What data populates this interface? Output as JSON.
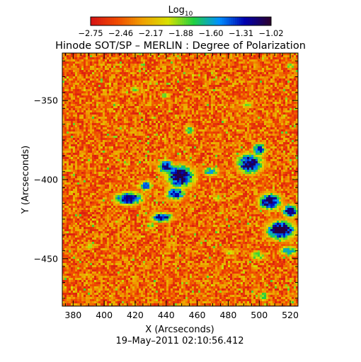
{
  "chart_data": {
    "type": "heatmap",
    "title": "Hinode SOT/SP – MERLIN : Degree of Polarization",
    "colorbar": {
      "title": "Log",
      "title_subscript": "10",
      "ticks": [
        "−2.75",
        "−2.46",
        "−2.17",
        "−1.88",
        "−1.60",
        "−1.31",
        "−1.02"
      ],
      "range": [
        -2.75,
        -1.02
      ],
      "colors": [
        "#d71414",
        "#f04a00",
        "#f0a000",
        "#d8e000",
        "#20d040",
        "#0090ff",
        "#0000b0",
        "#2a0030"
      ]
    },
    "xlabel": "X (Arcseconds)",
    "ylabel": "Y (Arcseconds)",
    "xlim": [
      373,
      525
    ],
    "ylim": [
      -480,
      -320
    ],
    "xticks": [
      "380",
      "400",
      "420",
      "440",
      "460",
      "480",
      "500",
      "520"
    ],
    "yticks": [
      "−350",
      "−400",
      "−450"
    ],
    "xtick_values": [
      380,
      400,
      420,
      440,
      460,
      480,
      500,
      520
    ],
    "ytick_values": [
      -350,
      -400,
      -450
    ],
    "timestamp": "19–May–2011 02:10:56.412",
    "regions": [
      {
        "x": 449,
        "y": -398,
        "rx": 9,
        "ry": 7,
        "peak": -1.05
      },
      {
        "x": 440,
        "y": -392,
        "rx": 5,
        "ry": 4,
        "peak": -1.15
      },
      {
        "x": 446,
        "y": -409,
        "rx": 6,
        "ry": 4,
        "peak": -1.25
      },
      {
        "x": 437,
        "y": -424,
        "rx": 7,
        "ry": 3,
        "peak": -1.2
      },
      {
        "x": 416,
        "y": -412,
        "rx": 9,
        "ry": 4,
        "peak": -1.15
      },
      {
        "x": 427,
        "y": -404,
        "rx": 4,
        "ry": 3,
        "peak": -1.4
      },
      {
        "x": 469,
        "y": -395,
        "rx": 5,
        "ry": 3,
        "peak": -1.55
      },
      {
        "x": 494,
        "y": -390,
        "rx": 8,
        "ry": 6,
        "peak": -1.1
      },
      {
        "x": 500,
        "y": -381,
        "rx": 4,
        "ry": 4,
        "peak": -1.3
      },
      {
        "x": 507,
        "y": -414,
        "rx": 7,
        "ry": 5,
        "peak": -1.1
      },
      {
        "x": 514,
        "y": -432,
        "rx": 9,
        "ry": 6,
        "peak": -1.05
      },
      {
        "x": 520,
        "y": -420,
        "rx": 5,
        "ry": 4,
        "peak": -1.15
      },
      {
        "x": 519,
        "y": -445,
        "rx": 6,
        "ry": 3,
        "peak": -1.6
      },
      {
        "x": 499,
        "y": -448,
        "rx": 5,
        "ry": 3,
        "peak": -1.8
      },
      {
        "x": 420,
        "y": -343,
        "rx": 3,
        "ry": 2,
        "peak": -1.8
      },
      {
        "x": 439,
        "y": -347,
        "rx": 3,
        "ry": 2,
        "peak": -1.85
      },
      {
        "x": 455,
        "y": -369,
        "rx": 3,
        "ry": 3,
        "peak": -1.7
      },
      {
        "x": 492,
        "y": -353,
        "rx": 4,
        "ry": 2,
        "peak": -1.85
      },
      {
        "x": 481,
        "y": -446,
        "rx": 3,
        "ry": 2,
        "peak": -1.9
      },
      {
        "x": 520,
        "y": -328,
        "rx": 3,
        "ry": 2,
        "peak": -1.85
      },
      {
        "x": 503,
        "y": -474,
        "rx": 3,
        "ry": 3,
        "peak": -1.75
      },
      {
        "x": 391,
        "y": -442,
        "rx": 3,
        "ry": 2,
        "peak": -1.95
      },
      {
        "x": 430,
        "y": -429,
        "rx": 3,
        "ry": 2,
        "peak": -1.8
      },
      {
        "x": 473,
        "y": -412,
        "rx": 3,
        "ry": 2,
        "peak": -1.9
      }
    ]
  }
}
